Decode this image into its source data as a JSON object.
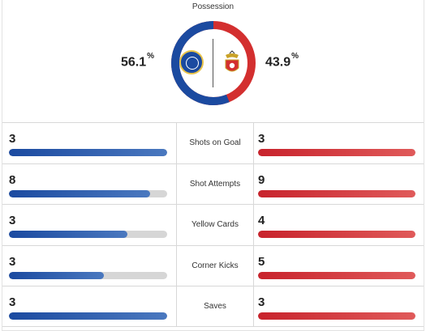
{
  "possession": {
    "title": "Possession",
    "home_pct": "56.1",
    "away_pct": "43.9",
    "pct_unit": "%",
    "home_value": 56.1,
    "away_value": 43.9,
    "home_color": "#1b4aa0",
    "away_color": "#d32f2f"
  },
  "teams": {
    "home_badge_icon": "chelsea-badge-icon",
    "away_badge_icon": "benfica-badge-icon"
  },
  "stats": [
    {
      "label": "Shots on Goal",
      "home": "3",
      "away": "3",
      "home_fill": 1.0,
      "away_fill": 1.0
    },
    {
      "label": "Shot Attempts",
      "home": "8",
      "away": "9",
      "home_fill": 0.89,
      "away_fill": 1.0
    },
    {
      "label": "Yellow Cards",
      "home": "3",
      "away": "4",
      "home_fill": 0.75,
      "away_fill": 1.0
    },
    {
      "label": "Corner Kicks",
      "home": "3",
      "away": "5",
      "home_fill": 0.6,
      "away_fill": 1.0
    },
    {
      "label": "Saves",
      "home": "3",
      "away": "3",
      "home_fill": 1.0,
      "away_fill": 1.0
    }
  ]
}
